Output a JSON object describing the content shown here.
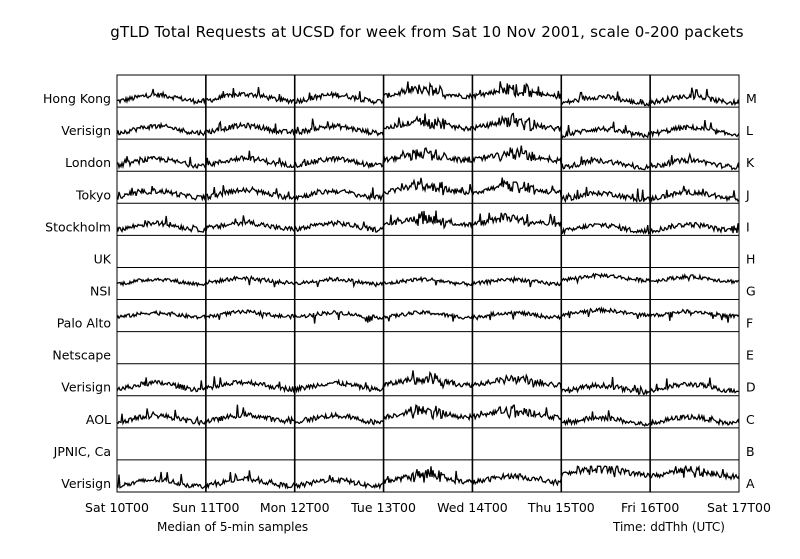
{
  "chart_data": {
    "type": "line",
    "title": "gTLD Total Requests at UCSD for week from Sat 10 Nov 2001, scale 0-200 packets",
    "x_ticks": [
      "Sat 10T00",
      "Sun 11T00",
      "Mon 12T00",
      "Tue 13T00",
      "Wed 14T00",
      "Thu 15T00",
      "Fri 16T00",
      "Sat 17T00"
    ],
    "x_range": [
      "Sat 10T00",
      "Sat 17T00"
    ],
    "y_range_per_row": [
      0,
      200
    ],
    "footnote_left": "Median of 5-min samples",
    "footnote_right": "Time: ddThh (UTC)",
    "grid": "vertical lines at each day",
    "series": [
      {
        "name": "Hong Kong",
        "letter": "M",
        "pattern": "active",
        "daily_mean": [
          70,
          75,
          70,
          110,
          110,
          55,
          60
        ]
      },
      {
        "name": "Verisign",
        "letter": "L",
        "pattern": "active",
        "daily_mean": [
          75,
          80,
          75,
          110,
          110,
          55,
          65
        ]
      },
      {
        "name": "London",
        "letter": "K",
        "pattern": "active",
        "daily_mean": [
          70,
          75,
          70,
          110,
          110,
          55,
          60
        ]
      },
      {
        "name": "Tokyo",
        "letter": "J",
        "pattern": "active",
        "daily_mean": [
          70,
          75,
          70,
          110,
          110,
          55,
          60
        ]
      },
      {
        "name": "Stockholm",
        "letter": "I",
        "pattern": "active",
        "daily_mean": [
          70,
          75,
          70,
          110,
          110,
          55,
          60
        ]
      },
      {
        "name": "UK",
        "letter": "H",
        "pattern": "none",
        "daily_mean": [
          0,
          0,
          0,
          0,
          0,
          0,
          0
        ]
      },
      {
        "name": "NSI",
        "letter": "G",
        "pattern": "inverse",
        "daily_mean": [
          140,
          150,
          140,
          140,
          140,
          170,
          160
        ]
      },
      {
        "name": "Palo Alto",
        "letter": "F",
        "pattern": "inverse",
        "daily_mean": [
          130,
          135,
          130,
          130,
          130,
          150,
          140
        ]
      },
      {
        "name": "Netscape",
        "letter": "E",
        "pattern": "none",
        "daily_mean": [
          0,
          0,
          0,
          0,
          0,
          0,
          0
        ]
      },
      {
        "name": "Verisign",
        "letter": "D",
        "pattern": "active",
        "daily_mean": [
          75,
          80,
          75,
          110,
          110,
          55,
          65
        ]
      },
      {
        "name": "AOL",
        "letter": "C",
        "pattern": "active",
        "daily_mean": [
          70,
          75,
          70,
          110,
          110,
          55,
          60
        ]
      },
      {
        "name": "JPNIC, Ca",
        "letter": "B",
        "pattern": "none",
        "daily_mean": [
          0,
          0,
          0,
          0,
          0,
          0,
          0
        ]
      },
      {
        "name": "Verisign",
        "letter": "A",
        "pattern": "active",
        "daily_mean": [
          70,
          75,
          70,
          105,
          100,
          160,
          145
        ]
      }
    ]
  }
}
